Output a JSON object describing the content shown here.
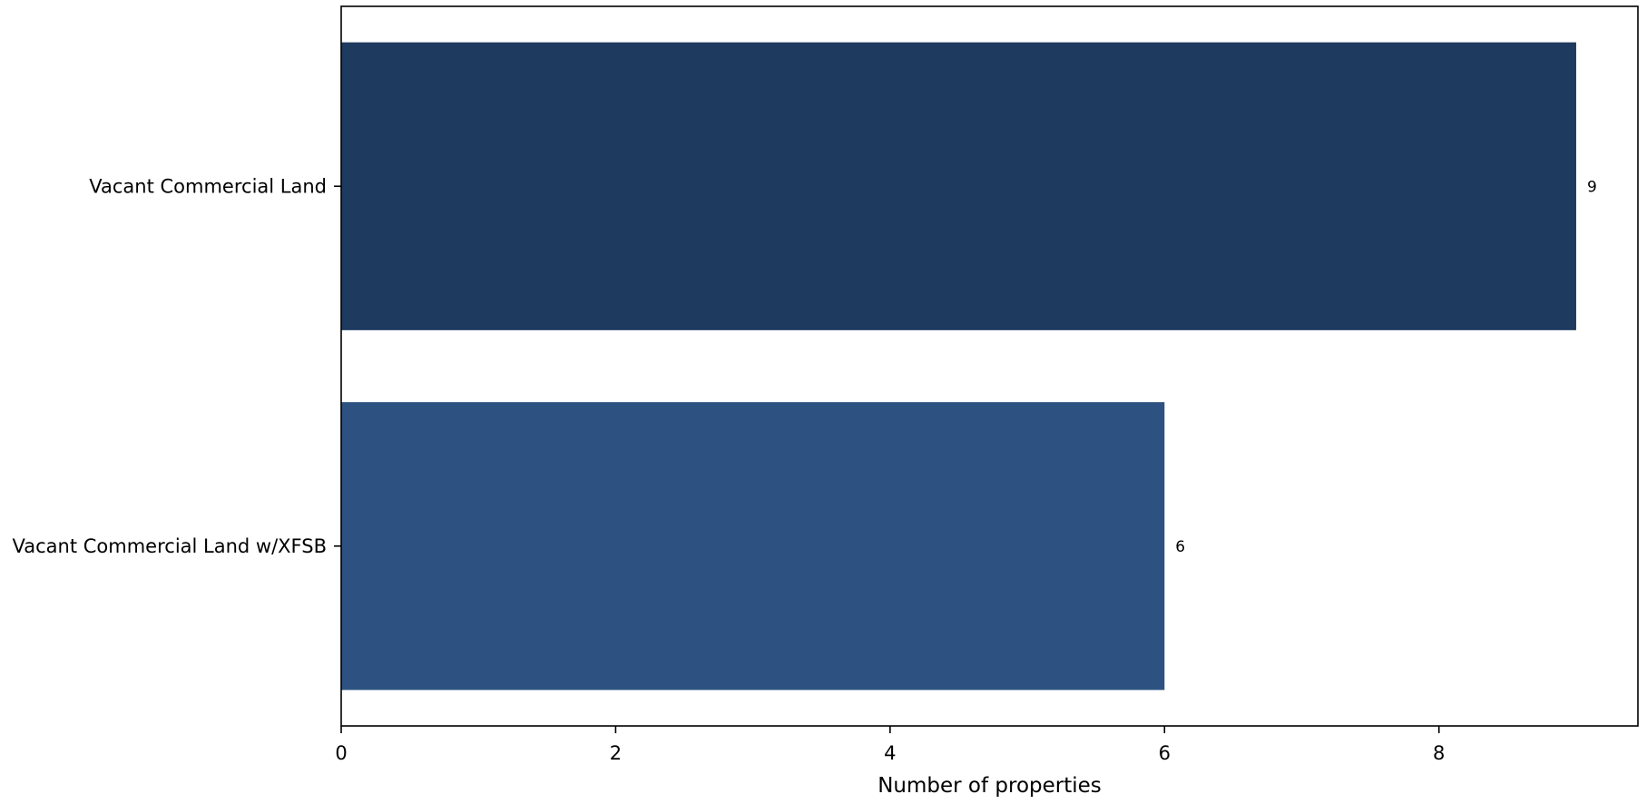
{
  "chart_data": {
    "type": "bar",
    "orientation": "horizontal",
    "categories": [
      "Vacant Commercial Land",
      "Vacant Commercial Land w/XFSB"
    ],
    "values": [
      9,
      6
    ],
    "bar_labels": [
      "9",
      "6"
    ],
    "colors": [
      "#1f3a5f",
      "#2d5281"
    ],
    "xlabel": "Number of properties",
    "ylabel": "",
    "title": "",
    "xlim": [
      0,
      9.45
    ],
    "xticks": [
      0,
      2,
      4,
      6,
      8
    ],
    "grid": false
  }
}
